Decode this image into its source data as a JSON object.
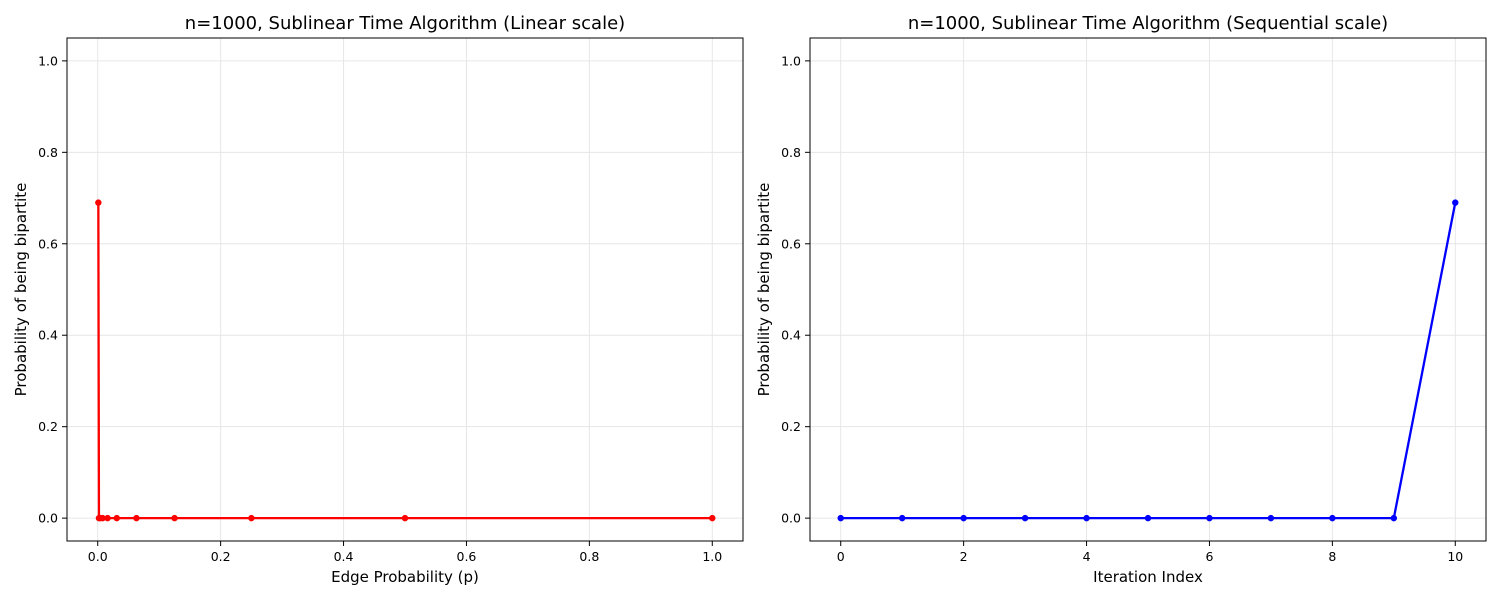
{
  "chart_data": [
    {
      "type": "line",
      "title": "n=1000, Sublinear Time Algorithm (Linear scale)",
      "xlabel": "Edge Probability (p)",
      "ylabel": "Probability of being bipartite",
      "xlim": [
        -0.05,
        1.05
      ],
      "ylim": [
        -0.05,
        1.05
      ],
      "xticks": [
        0.0,
        0.2,
        0.4,
        0.6,
        0.8,
        1.0
      ],
      "xtick_labels": [
        "0.0",
        "0.2",
        "0.4",
        "0.6",
        "0.8",
        "1.0"
      ],
      "yticks": [
        0.0,
        0.2,
        0.4,
        0.6,
        0.8,
        1.0
      ],
      "ytick_labels": [
        "0.0",
        "0.2",
        "0.4",
        "0.6",
        "0.8",
        "1.0"
      ],
      "grid": true,
      "series": [
        {
          "color": "#ff0000",
          "x": [
            0.001,
            0.002,
            0.004,
            0.008,
            0.016,
            0.031,
            0.063,
            0.125,
            0.25,
            0.5,
            1.0
          ],
          "y": [
            0.69,
            0.0,
            0.0,
            0.0,
            0.0,
            0.0,
            0.0,
            0.0,
            0.0,
            0.0,
            0.0
          ]
        }
      ]
    },
    {
      "type": "line",
      "title": "n=1000, Sublinear Time Algorithm (Sequential scale)",
      "xlabel": "Iteration Index",
      "ylabel": "Probability of being bipartite",
      "xlim": [
        -0.5,
        10.5
      ],
      "ylim": [
        -0.05,
        1.05
      ],
      "xticks": [
        0,
        2,
        4,
        6,
        8,
        10
      ],
      "xtick_labels": [
        "0",
        "2",
        "4",
        "6",
        "8",
        "10"
      ],
      "yticks": [
        0.0,
        0.2,
        0.4,
        0.6,
        0.8,
        1.0
      ],
      "ytick_labels": [
        "0.0",
        "0.2",
        "0.4",
        "0.6",
        "0.8",
        "1.0"
      ],
      "grid": true,
      "series": [
        {
          "color": "#0000ff",
          "x": [
            0,
            1,
            2,
            3,
            4,
            5,
            6,
            7,
            8,
            9,
            10
          ],
          "y": [
            0.0,
            0.0,
            0.0,
            0.0,
            0.0,
            0.0,
            0.0,
            0.0,
            0.0,
            0.0,
            0.69
          ]
        }
      ]
    }
  ]
}
